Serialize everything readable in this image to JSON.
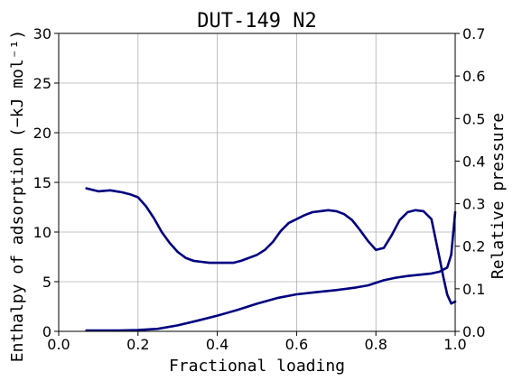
{
  "chart_data": {
    "type": "line",
    "title": "DUT-149 N2",
    "xlabel": "Fractional loading",
    "ylabel_left": "Enthalpy of adsorption (−kJ mol⁻¹)",
    "ylabel_right": "Relative pressure",
    "xlim": [
      0.0,
      1.0
    ],
    "ylim_left": [
      0,
      30
    ],
    "ylim_right": [
      0.0,
      0.7
    ],
    "grid": true,
    "x_ticks": [
      "0.0",
      "0.2",
      "0.4",
      "0.6",
      "0.8",
      "1.0"
    ],
    "y_left_ticks": [
      "0",
      "5",
      "10",
      "15",
      "20",
      "25",
      "30"
    ],
    "y_right_ticks": [
      "0.0",
      "0.1",
      "0.2",
      "0.3",
      "0.4",
      "0.5",
      "0.6",
      "0.7"
    ],
    "line_color": "#000080",
    "series": [
      {
        "axis": "left",
        "x": [
          0.07,
          0.1,
          0.13,
          0.16,
          0.18,
          0.2,
          0.22,
          0.24,
          0.26,
          0.28,
          0.3,
          0.32,
          0.34,
          0.36,
          0.38,
          0.4,
          0.42,
          0.44,
          0.46,
          0.48,
          0.5,
          0.52,
          0.54,
          0.56,
          0.58,
          0.6,
          0.62,
          0.64,
          0.66,
          0.68,
          0.7,
          0.72,
          0.74,
          0.76,
          0.78,
          0.8,
          0.82,
          0.84,
          0.86,
          0.88,
          0.9,
          0.92,
          0.94,
          0.96,
          0.97,
          0.98,
          0.99,
          1.0
        ],
        "values": [
          14.4,
          14.1,
          14.2,
          14.0,
          13.8,
          13.5,
          12.6,
          11.4,
          10.0,
          8.9,
          8.0,
          7.4,
          7.1,
          7.0,
          6.9,
          6.9,
          6.9,
          6.9,
          7.1,
          7.4,
          7.7,
          8.2,
          9.0,
          10.1,
          10.9,
          11.3,
          11.7,
          12.0,
          12.1,
          12.2,
          12.1,
          11.8,
          11.2,
          10.2,
          9.1,
          8.2,
          8.4,
          9.7,
          11.2,
          12.0,
          12.2,
          12.1,
          11.3,
          7.5,
          5.5,
          3.7,
          2.8,
          3.0
        ]
      },
      {
        "axis": "right",
        "x": [
          0.07,
          0.1,
          0.15,
          0.2,
          0.25,
          0.3,
          0.35,
          0.4,
          0.45,
          0.5,
          0.55,
          0.6,
          0.65,
          0.7,
          0.75,
          0.78,
          0.8,
          0.82,
          0.85,
          0.88,
          0.91,
          0.94,
          0.96,
          0.98,
          0.99,
          1.0
        ],
        "values": [
          0.002,
          0.002,
          0.002,
          0.003,
          0.006,
          0.014,
          0.025,
          0.037,
          0.05,
          0.065,
          0.078,
          0.087,
          0.092,
          0.097,
          0.103,
          0.108,
          0.114,
          0.12,
          0.126,
          0.13,
          0.133,
          0.136,
          0.14,
          0.15,
          0.18,
          0.28
        ]
      }
    ]
  }
}
